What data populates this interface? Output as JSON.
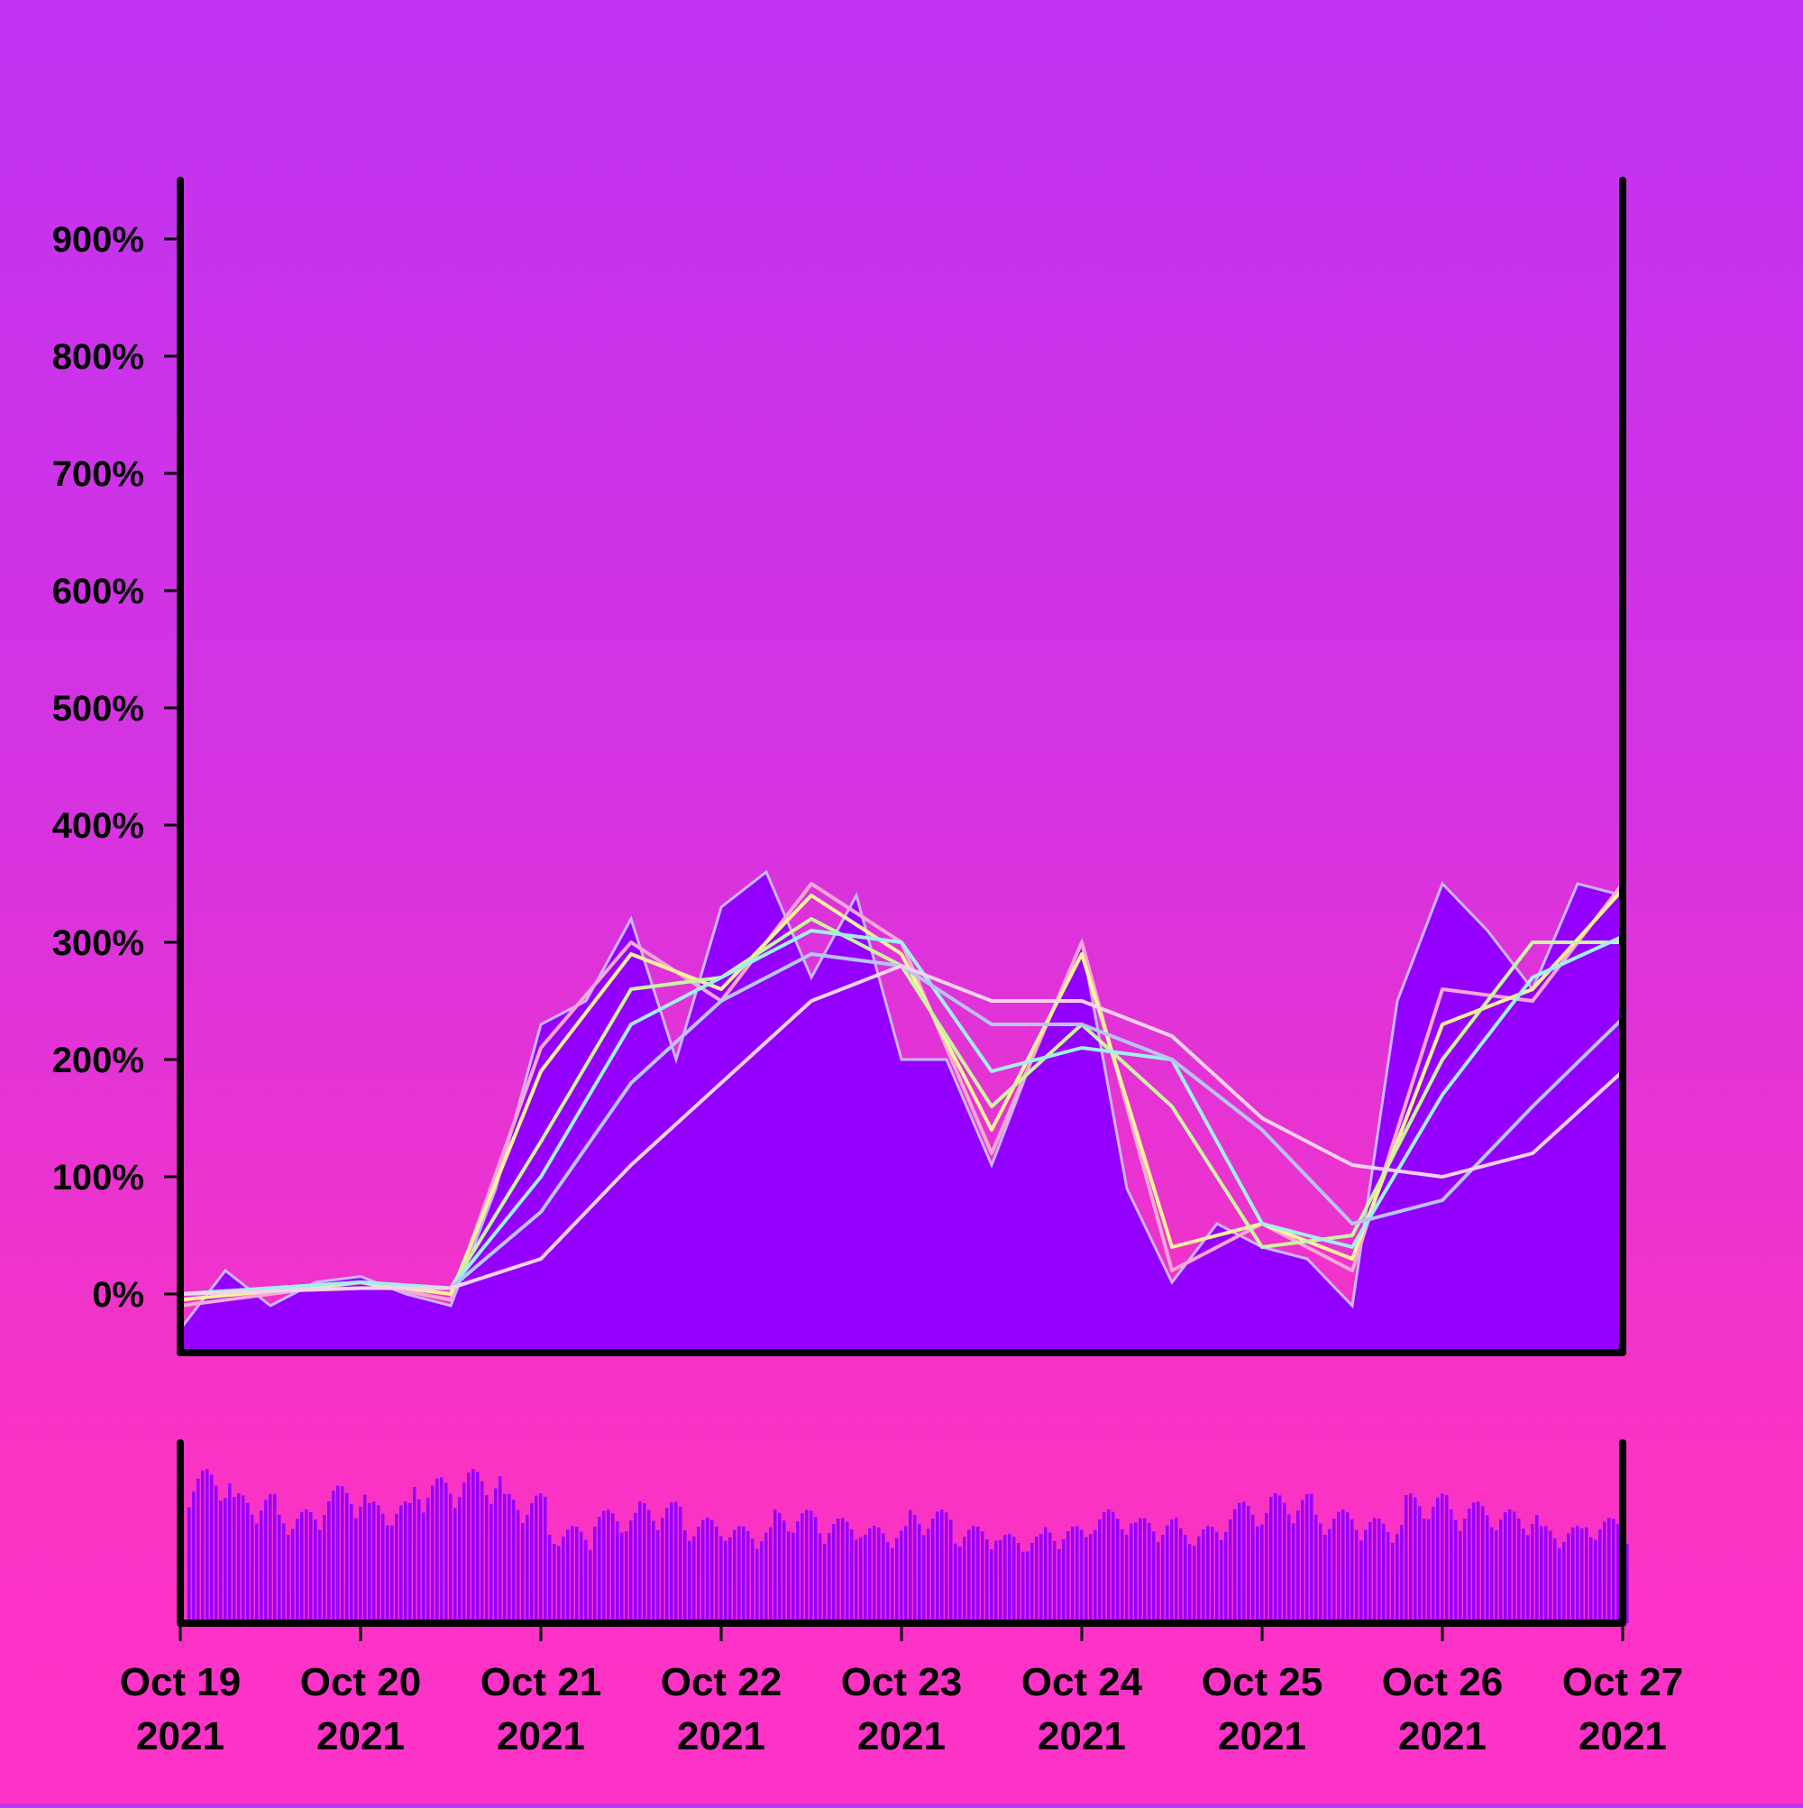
{
  "chart_data": {
    "type": "line",
    "x_type": "date",
    "x_ticks": [
      {
        "date": "Oct 19",
        "year": "2021"
      },
      {
        "date": "Oct 20",
        "year": "2021"
      },
      {
        "date": "Oct 21",
        "year": "2021"
      },
      {
        "date": "Oct 22",
        "year": "2021"
      },
      {
        "date": "Oct 23",
        "year": "2021"
      },
      {
        "date": "Oct 24",
        "year": "2021"
      },
      {
        "date": "Oct 25",
        "year": "2021"
      },
      {
        "date": "Oct 26",
        "year": "2021"
      },
      {
        "date": "Oct 27",
        "year": "2021"
      }
    ],
    "y_ticks": [
      "0%",
      "100%",
      "200%",
      "300%",
      "400%",
      "500%",
      "600%",
      "700%",
      "800%",
      "900%"
    ],
    "ylim": [
      -50,
      950
    ],
    "xlim": [
      "2021-10-19",
      "2021-10-27"
    ],
    "grid": false,
    "legend": "none",
    "price_series": {
      "x": [
        "2021-10-19 00:00",
        "2021-10-19 06:00",
        "2021-10-19 12:00",
        "2021-10-19 18:00",
        "2021-10-20 00:00",
        "2021-10-20 06:00",
        "2021-10-20 12:00",
        "2021-10-20 18:00",
        "2021-10-21 00:00",
        "2021-10-21 06:00",
        "2021-10-21 12:00",
        "2021-10-21 18:00",
        "2021-10-22 00:00",
        "2021-10-22 06:00",
        "2021-10-22 12:00",
        "2021-10-22 18:00",
        "2021-10-23 00:00",
        "2021-10-23 06:00",
        "2021-10-23 12:00",
        "2021-10-23 18:00",
        "2021-10-24 00:00",
        "2021-10-24 06:00",
        "2021-10-24 12:00",
        "2021-10-24 18:00",
        "2021-10-25 00:00",
        "2021-10-25 06:00",
        "2021-10-25 12:00",
        "2021-10-25 18:00",
        "2021-10-26 00:00",
        "2021-10-26 06:00",
        "2021-10-26 12:00",
        "2021-10-26 18:00",
        "2021-10-27 00:00"
      ],
      "y": [
        -30,
        20,
        -10,
        10,
        15,
        0,
        -10,
        90,
        230,
        250,
        320,
        200,
        330,
        360,
        270,
        340,
        200,
        200,
        110,
        210,
        300,
        90,
        10,
        60,
        40,
        30,
        -10,
        250,
        350,
        310,
        260,
        350,
        340
      ]
    },
    "moving_averages": [
      {
        "color": "#f7a8d4",
        "x": [
          "2021-10-19",
          "2021-10-20",
          "2021-10-20 12:00",
          "2021-10-21",
          "2021-10-21 12:00",
          "2021-10-22",
          "2021-10-22 12:00",
          "2021-10-23",
          "2021-10-23 12:00",
          "2021-10-24",
          "2021-10-24 12:00",
          "2021-10-25",
          "2021-10-25 12:00",
          "2021-10-26",
          "2021-10-26 12:00",
          "2021-10-27"
        ],
        "y": [
          -10,
          10,
          -5,
          210,
          300,
          250,
          350,
          300,
          120,
          300,
          20,
          60,
          20,
          260,
          250,
          350
        ]
      },
      {
        "color": "#fff29a",
        "x": [
          "2021-10-19",
          "2021-10-20",
          "2021-10-20 12:00",
          "2021-10-21",
          "2021-10-21 12:00",
          "2021-10-22",
          "2021-10-22 12:00",
          "2021-10-23",
          "2021-10-23 12:00",
          "2021-10-24",
          "2021-10-24 12:00",
          "2021-10-25",
          "2021-10-25 12:00",
          "2021-10-26",
          "2021-10-26 12:00",
          "2021-10-27"
        ],
        "y": [
          -5,
          10,
          0,
          190,
          290,
          260,
          340,
          290,
          140,
          290,
          40,
          60,
          30,
          230,
          260,
          345
        ]
      },
      {
        "color": "#c8f5a0",
        "x": [
          "2021-10-19",
          "2021-10-20",
          "2021-10-20 12:00",
          "2021-10-21",
          "2021-10-21 12:00",
          "2021-10-22",
          "2021-10-22 12:00",
          "2021-10-23",
          "2021-10-23 12:00",
          "2021-10-24",
          "2021-10-24 12:00",
          "2021-10-25",
          "2021-10-25 12:00",
          "2021-10-26",
          "2021-10-26 12:00",
          "2021-10-27"
        ],
        "y": [
          0,
          10,
          5,
          130,
          260,
          270,
          320,
          280,
          160,
          230,
          160,
          40,
          50,
          200,
          300,
          300
        ]
      },
      {
        "color": "#9ff0f0",
        "x": [
          "2021-10-19",
          "2021-10-20",
          "2021-10-20 12:00",
          "2021-10-21",
          "2021-10-21 12:00",
          "2021-10-22",
          "2021-10-22 12:00",
          "2021-10-23",
          "2021-10-23 12:00",
          "2021-10-24",
          "2021-10-24 12:00",
          "2021-10-25",
          "2021-10-25 12:00",
          "2021-10-26",
          "2021-10-26 12:00",
          "2021-10-27"
        ],
        "y": [
          0,
          10,
          5,
          100,
          230,
          270,
          310,
          300,
          190,
          210,
          200,
          60,
          40,
          170,
          270,
          305
        ]
      },
      {
        "color": "#b6c4f2",
        "x": [
          "2021-10-19",
          "2021-10-20",
          "2021-10-20 12:00",
          "2021-10-21",
          "2021-10-21 12:00",
          "2021-10-22",
          "2021-10-22 12:00",
          "2021-10-23",
          "2021-10-23 12:00",
          "2021-10-24",
          "2021-10-24 12:00",
          "2021-10-25",
          "2021-10-25 12:00",
          "2021-10-26",
          "2021-10-26 12:00",
          "2021-10-27"
        ],
        "y": [
          0,
          5,
          5,
          70,
          180,
          250,
          290,
          280,
          230,
          230,
          200,
          140,
          60,
          80,
          160,
          235
        ]
      },
      {
        "color": "#f6d3ee",
        "x": [
          "2021-10-19",
          "2021-10-20",
          "2021-10-20 12:00",
          "2021-10-21",
          "2021-10-21 12:00",
          "2021-10-22",
          "2021-10-22 12:00",
          "2021-10-23",
          "2021-10-23 12:00",
          "2021-10-24",
          "2021-10-24 12:00",
          "2021-10-25",
          "2021-10-25 12:00",
          "2021-10-26",
          "2021-10-26 12:00",
          "2021-10-27"
        ],
        "y": [
          0,
          5,
          5,
          30,
          110,
          180,
          250,
          280,
          250,
          250,
          220,
          150,
          110,
          100,
          120,
          190
        ]
      }
    ],
    "volume": [
      0.95,
      0.8,
      0.7,
      0.85,
      0.75,
      0.9,
      0.95,
      0.8,
      0.6,
      0.7,
      0.75,
      0.65,
      0.6,
      0.7,
      0.65,
      0.6,
      0.7,
      0.6,
      0.55,
      0.6,
      0.7,
      0.65,
      0.6,
      0.75,
      0.8,
      0.7,
      0.65,
      0.8,
      0.75,
      0.7,
      0.6,
      0.65
    ]
  },
  "colors": {
    "fill": "#9400ff",
    "price_line": "#c8b6ff",
    "axis": "#000000"
  }
}
